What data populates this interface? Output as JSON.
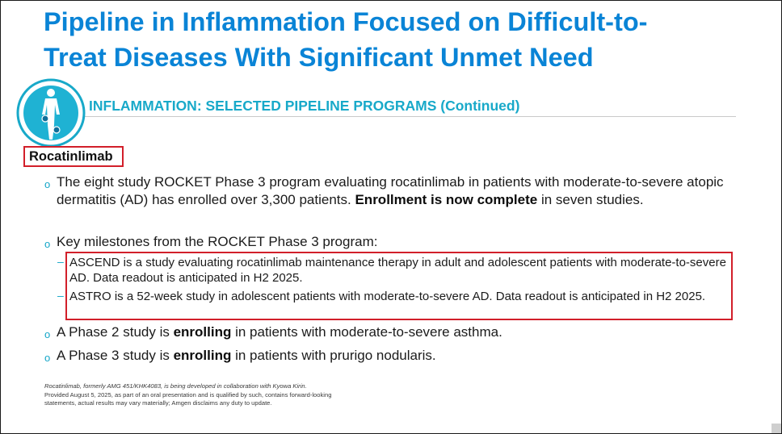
{
  "slide": {
    "title_line1": "Pipeline in Inflammation Focused on Difficult-to-",
    "title_line2": "Treat Diseases With Significant Unmet Need",
    "section_label": "INFLAMMATION: SELECTED PIPELINE PROGRAMS (Continued)",
    "section_icon": "human-body-inflammation-icon",
    "product_name": "Rocatinlimab",
    "bullets": [
      {
        "text_a": "The eight study ROCKET Phase 3 program evaluating rocatinlimab in patients with moderate-to-severe atopic dermatitis (AD) has enrolled over 3,300 patients. ",
        "bold": "Enrollment is now complete",
        "text_b": " in seven studies."
      },
      {
        "text_a": "Key milestones from the ROCKET Phase 3 program:"
      },
      {
        "text_a": "A Phase 2 study is ",
        "bold": "enrolling",
        "text_b": " in patients with moderate-to-severe asthma."
      },
      {
        "text_a": "A Phase 3 study is ",
        "bold": "enrolling",
        "text_b": " in patients with prurigo nodularis."
      }
    ],
    "sub_bullets": [
      "ASCEND is a study evaluating rocatinlimab maintenance therapy in adult and adolescent patients with moderate-to-severe AD. Data readout is anticipated in H2 2025.",
      "ASTRO is a 52-week study in adolescent patients with moderate-to-severe AD. Data readout is anticipated in H2 2025."
    ],
    "bullet_glyph": "o",
    "dash_glyph": "–",
    "footnote_1": "Rocatinlimab, formerly AMG 451/KHK4083, is being developed in collaboration with Kyowa Kirin.",
    "footnote_2": "Provided August 5, 2025, as part of an oral presentation and is qualified by such, contains forward-looking statements, actual results may vary materially; Amgen disclaims any duty to update."
  },
  "colors": {
    "title": "#0a84d6",
    "section": "#18a9c9",
    "highlight_box": "#d21f2a",
    "bullet": "#14a6c8"
  }
}
